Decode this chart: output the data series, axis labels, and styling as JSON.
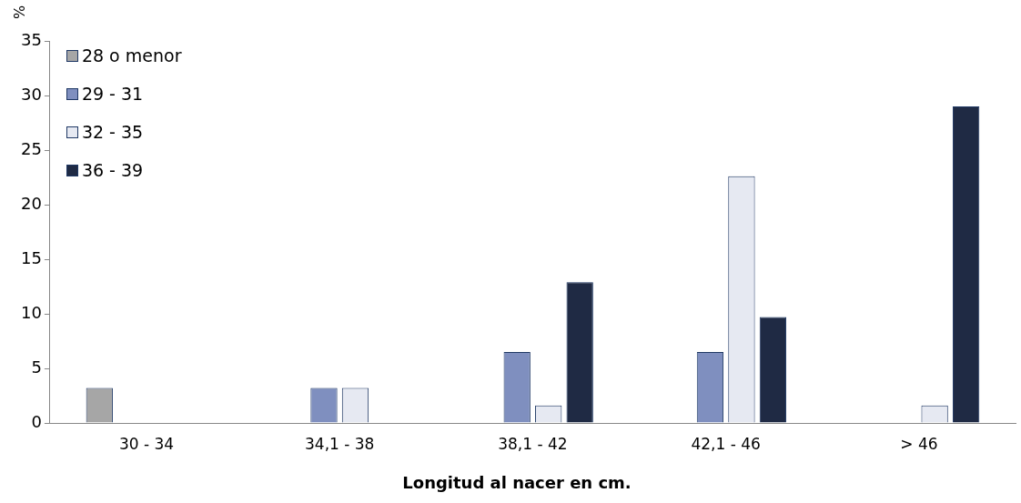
{
  "chart_data": {
    "type": "bar",
    "xlabel": "Longitud al nacer en cm.",
    "ylabel": "%",
    "categories": [
      "30 - 34",
      "34,1 - 38",
      "38,1 - 42",
      "42,1 - 46",
      "> 46"
    ],
    "series": [
      {
        "name": "28 o menor",
        "color": "#a6a6a6",
        "values": [
          3.2,
          null,
          null,
          null,
          null
        ]
      },
      {
        "name": "29 - 31",
        "color": "#7f8fbf",
        "values": [
          null,
          3.2,
          6.5,
          6.5,
          null
        ]
      },
      {
        "name": "32 - 35",
        "color": "#e6e9f2",
        "values": [
          null,
          3.2,
          1.6,
          22.6,
          1.6
        ]
      },
      {
        "name": "36 - 39",
        "color": "#1f2a44",
        "values": [
          null,
          null,
          12.9,
          9.7,
          29.0
        ]
      }
    ],
    "ylim": [
      0,
      35
    ],
    "yticks": [
      0,
      5,
      10,
      15,
      20,
      25,
      30,
      35
    ],
    "grid": false,
    "legend": "top left"
  }
}
